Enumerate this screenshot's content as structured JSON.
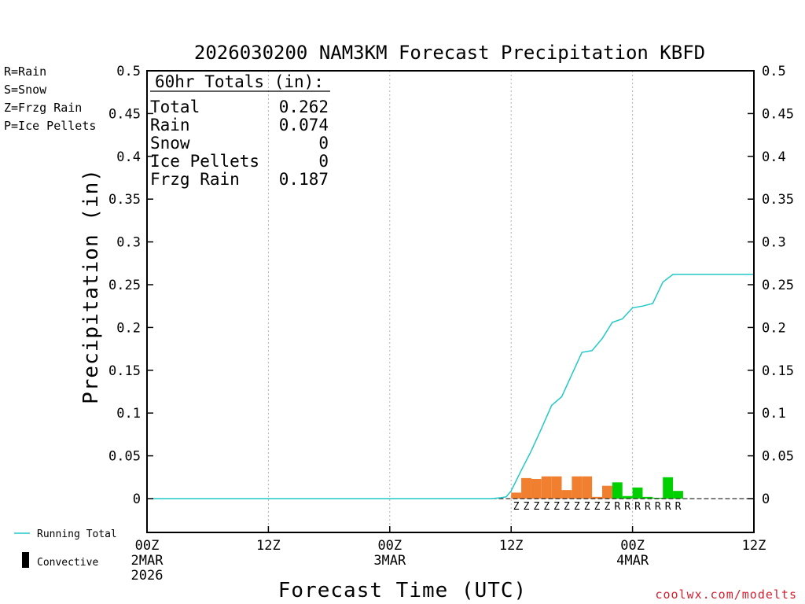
{
  "chart_data": {
    "type": "bar",
    "title": "2026030200 NAM3KM Forecast Precipitation KBFD",
    "xlabel": "Forecast Time (UTC)",
    "ylabel": "Precipitation (in)",
    "ylim": [
      -0.04,
      0.5
    ],
    "xlim": [
      0,
      60
    ],
    "yticks": [
      0,
      0.05,
      0.1,
      0.15,
      0.2,
      0.25,
      0.3,
      0.35,
      0.4,
      0.45,
      0.5
    ],
    "ytick_labels": [
      "0",
      "0.05",
      "0.1",
      "0.15",
      "0.2",
      "0.25",
      "0.3",
      "0.35",
      "0.4",
      "0.45",
      "0.5"
    ],
    "xticks": [
      {
        "hour": 0,
        "lines": [
          "00Z",
          "2MAR",
          "2026"
        ]
      },
      {
        "hour": 12,
        "lines": [
          "12Z"
        ]
      },
      {
        "hour": 24,
        "lines": [
          "00Z",
          "3MAR"
        ]
      },
      {
        "hour": 36,
        "lines": [
          "12Z"
        ]
      },
      {
        "hour": 48,
        "lines": [
          "00Z",
          "4MAR"
        ]
      },
      {
        "hour": 60,
        "lines": [
          "12Z"
        ]
      }
    ],
    "gridlines_at_hours": [
      12,
      24,
      36,
      48
    ],
    "bars": [
      {
        "hour": 36.5,
        "value": 0.007,
        "type": "Z"
      },
      {
        "hour": 37.5,
        "value": 0.024,
        "type": "Z"
      },
      {
        "hour": 38.5,
        "value": 0.023,
        "type": "Z"
      },
      {
        "hour": 39.5,
        "value": 0.026,
        "type": "Z"
      },
      {
        "hour": 40.5,
        "value": 0.026,
        "type": "Z"
      },
      {
        "hour": 41.5,
        "value": 0.01,
        "type": "Z"
      },
      {
        "hour": 42.5,
        "value": 0.026,
        "type": "Z"
      },
      {
        "hour": 43.5,
        "value": 0.026,
        "type": "Z"
      },
      {
        "hour": 44.5,
        "value": 0.002,
        "type": "Z"
      },
      {
        "hour": 45.5,
        "value": 0.015,
        "type": "Z"
      },
      {
        "hour": 46.5,
        "value": 0.019,
        "type": "R"
      },
      {
        "hour": 47.5,
        "value": 0.003,
        "type": "R"
      },
      {
        "hour": 48.5,
        "value": 0.013,
        "type": "R"
      },
      {
        "hour": 49.5,
        "value": 0.002,
        "type": "R"
      },
      {
        "hour": 50.5,
        "value": 0.001,
        "type": "R"
      },
      {
        "hour": 51.5,
        "value": 0.025,
        "type": "R"
      },
      {
        "hour": 52.5,
        "value": 0.009,
        "type": "R"
      }
    ],
    "running_total": {
      "name": "Running Total",
      "hours": [
        0.5,
        32,
        34,
        34.5,
        35,
        35.5,
        36,
        37,
        38,
        39,
        40,
        41,
        42,
        43,
        44,
        45,
        46,
        47,
        48,
        49,
        50,
        51,
        52,
        60
      ],
      "values": [
        0,
        0,
        0,
        0.0005,
        0.001,
        0.002,
        0.009,
        0.033,
        0.056,
        0.082,
        0.109,
        0.119,
        0.145,
        0.171,
        0.173,
        0.187,
        0.206,
        0.21,
        0.223,
        0.225,
        0.228,
        0.253,
        0.262,
        0.262
      ]
    },
    "colors": {
      "R": "#00d000",
      "S": "#2a3fe0",
      "Z": "#f08030",
      "P": "#e0209a",
      "running_total": "#22c8c8",
      "convective": "#000000"
    },
    "legend_top": [
      {
        "label": "R=Rain",
        "key": "R"
      },
      {
        "label": "S=Snow",
        "key": "S"
      },
      {
        "label": "Z=Frzg Rain",
        "key": "Z"
      },
      {
        "label": "P=Ice Pellets",
        "key": "P"
      }
    ],
    "legend_bottom": [
      {
        "label": "Running Total",
        "key": "running_total"
      },
      {
        "label": "Convective",
        "key": "convective"
      }
    ],
    "totals": {
      "header": "60hr Totals (in):",
      "rows": [
        {
          "label": "Total",
          "value": "0.262"
        },
        {
          "label": "Rain",
          "value": "0.074"
        },
        {
          "label": "Snow",
          "value": "0"
        },
        {
          "label": "Ice Pellets",
          "value": "0"
        },
        {
          "label": "Frzg Rain",
          "value": "0.187"
        }
      ]
    }
  },
  "credit": "coolwx.com/modelts"
}
